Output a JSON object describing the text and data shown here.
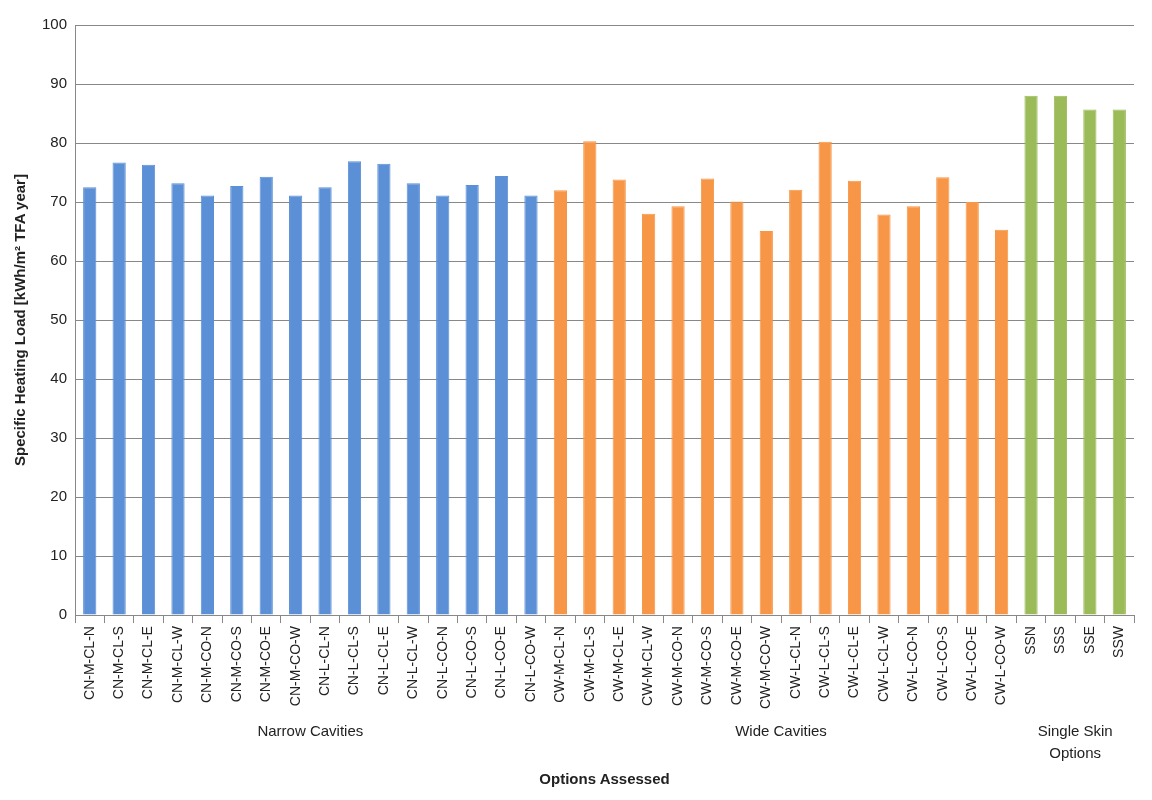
{
  "chart_data": {
    "type": "bar",
    "xlabel": "Options Assessed",
    "ylabel": "Specific Heating Load [kWh/m² TFA year]",
    "categories": [
      "CN-M-CL-N",
      "CN-M-CL-S",
      "CN-M-CL-E",
      "CN-M-CL-W",
      "CN-M-CO-N",
      "CN-M-CO-S",
      "CN-M-CO-E",
      "CN-M-CO-W",
      "CN-L-CL-N",
      "CN-L-CL-S",
      "CN-L-CL-E",
      "CN-L-CL-W",
      "CN-L-CO-N",
      "CN-L-CO-S",
      "CN-L-CO-E",
      "CN-L-CO-W",
      "CW-M-CL-N",
      "CW-M-CL-S",
      "CW-M-CL-E",
      "CW-M-CL-W",
      "CW-M-CO-N",
      "CW-M-CO-S",
      "CW-M-CO-E",
      "CW-M-CO-W",
      "CW-L-CL-N",
      "CW-L-CL-S",
      "CW-L-CL-E",
      "CW-L-CL-W",
      "CW-L-CO-N",
      "CW-L-CO-S",
      "CW-L-CO-E",
      "CW-L-CO-W",
      "SSN",
      "SSS",
      "SSE",
      "SSW"
    ],
    "values": [
      72.5,
      76.7,
      76.3,
      73.2,
      71.1,
      72.7,
      74.3,
      71.1,
      72.5,
      76.9,
      76.5,
      73.2,
      71.1,
      72.9,
      74.4,
      71.1,
      72.0,
      80.3,
      73.8,
      68.0,
      69.3,
      74.0,
      70.1,
      65.1,
      72.1,
      80.2,
      73.6,
      67.9,
      69.3,
      74.2,
      70.0,
      65.3,
      88.0,
      88.0,
      85.7,
      85.7
    ],
    "colors": [
      "#5b8fd6",
      "#5b8fd6",
      "#5b8fd6",
      "#5b8fd6",
      "#5b8fd6",
      "#5b8fd6",
      "#5b8fd6",
      "#5b8fd6",
      "#5b8fd6",
      "#5b8fd6",
      "#5b8fd6",
      "#5b8fd6",
      "#5b8fd6",
      "#5b8fd6",
      "#5b8fd6",
      "#5b8fd6",
      "#f79646",
      "#f79646",
      "#f79646",
      "#f79646",
      "#f79646",
      "#f79646",
      "#f79646",
      "#f79646",
      "#f79646",
      "#f79646",
      "#f79646",
      "#f79646",
      "#f79646",
      "#f79646",
      "#f79646",
      "#f79646",
      "#9bbb59",
      "#9bbb59",
      "#9bbb59",
      "#9bbb59"
    ],
    "ylim": [
      0,
      100
    ],
    "yticks": [
      0,
      10,
      20,
      30,
      40,
      50,
      60,
      70,
      80,
      90,
      100
    ],
    "grid": "y",
    "legend": false,
    "annotations": [
      "Narrow Cavities",
      "Wide Cavities",
      "Single Skin Options"
    ]
  }
}
